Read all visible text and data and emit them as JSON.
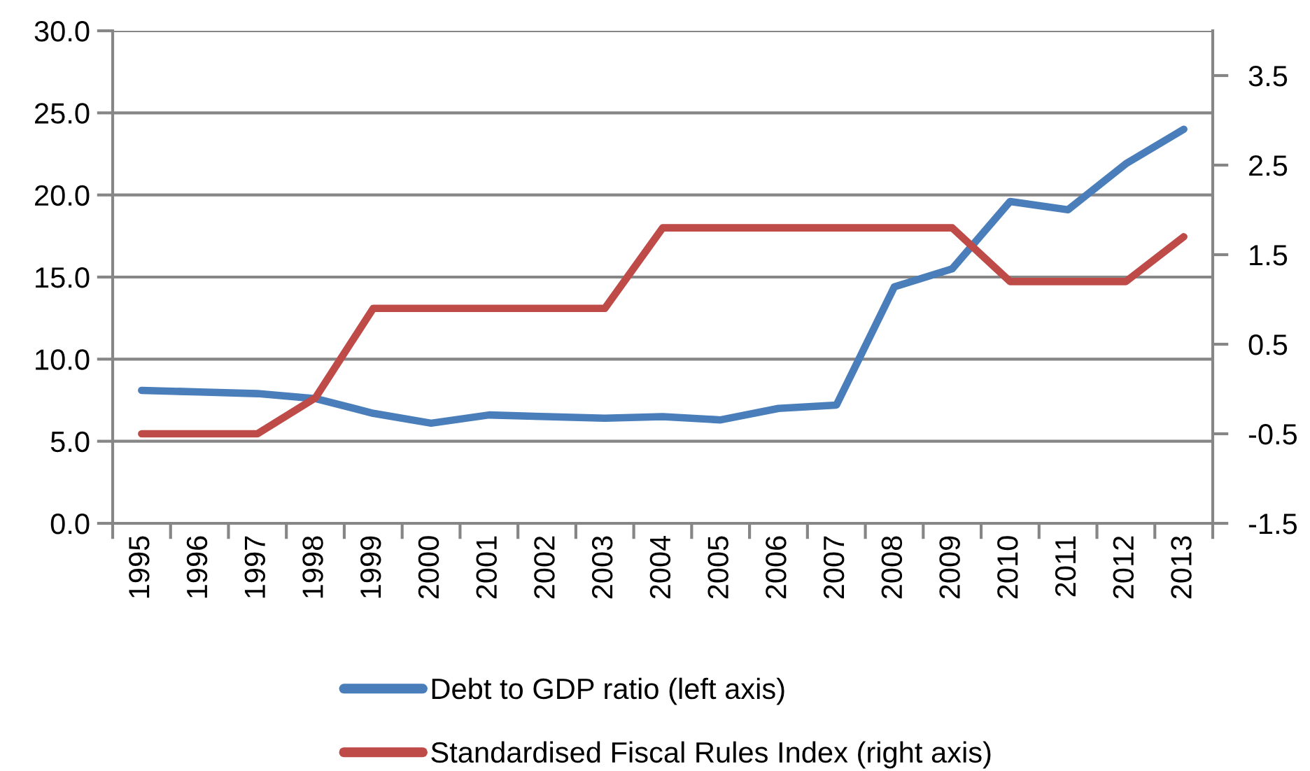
{
  "chart_data": {
    "type": "line",
    "categories": [
      "1995",
      "1996",
      "1997",
      "1998",
      "1999",
      "2000",
      "2001",
      "2002",
      "2003",
      "2004",
      "2005",
      "2006",
      "2007",
      "2008",
      "2009",
      "2010",
      "2011",
      "2012",
      "2013"
    ],
    "series": [
      {
        "name": "Debt to GDP ratio (left axis)",
        "color": "#4a7ebb",
        "values": [
          8.1,
          8.0,
          7.9,
          7.6,
          6.7,
          6.1,
          6.6,
          6.5,
          6.4,
          6.5,
          6.3,
          7.0,
          7.2,
          14.4,
          15.5,
          19.6,
          19.1,
          21.9,
          24.0
        ]
      },
      {
        "name": "Standardised Fiscal Rules Index (right axis)",
        "color": "#be4b48",
        "axis": "y2",
        "values": [
          -0.5,
          -0.5,
          -0.5,
          -0.1,
          0.9,
          0.9,
          0.9,
          0.9,
          0.9,
          1.8,
          1.8,
          1.8,
          1.8,
          1.8,
          1.8,
          1.2,
          1.2,
          1.2,
          1.7
        ]
      }
    ],
    "ylim": [
      0,
      30
    ],
    "yticks": [
      {
        "value": 0,
        "label": "0.0"
      },
      {
        "value": 5,
        "label": "5.0"
      },
      {
        "value": 10,
        "label": "10.0"
      },
      {
        "value": 15,
        "label": "15.0"
      },
      {
        "value": 20,
        "label": "20.0"
      },
      {
        "value": 25,
        "label": "25.0"
      },
      {
        "value": 30,
        "label": "30.0"
      }
    ],
    "y2lim": [
      -1.5,
      4.0
    ],
    "y2ticks": [
      -1.5,
      -0.5,
      0.5,
      1.5,
      2.5,
      3.5
    ],
    "grid": "y",
    "legend": "bottom"
  }
}
